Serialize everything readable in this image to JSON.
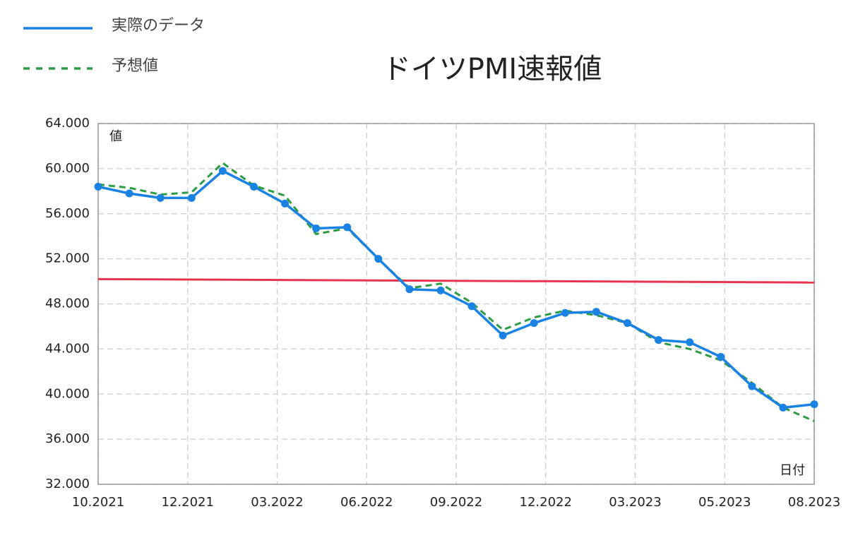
{
  "chart_data": {
    "type": "line",
    "title": "ドイツPMI速報値",
    "y_label": "値",
    "x_label": "日付",
    "series": [
      {
        "name": "実際のデータ",
        "color": "#1a82e2",
        "dash": false,
        "values": [
          58.4,
          57.8,
          57.4,
          57.4,
          59.8,
          58.4,
          56.9,
          54.7,
          54.8,
          52.0,
          49.3,
          49.2,
          47.8,
          45.2,
          46.3,
          47.2,
          47.3,
          46.3,
          44.8,
          44.6,
          43.3,
          40.7,
          38.8,
          39.1
        ]
      },
      {
        "name": "予想値",
        "color": "#2e9b45",
        "dash": true,
        "values": [
          58.6,
          58.3,
          57.7,
          57.9,
          60.5,
          58.5,
          57.6,
          54.2,
          54.7,
          52.0,
          49.4,
          49.8,
          48.1,
          45.7,
          46.8,
          47.4,
          47.0,
          46.3,
          44.6,
          44.0,
          43.0,
          41.0,
          38.8,
          37.6
        ]
      }
    ],
    "reference_line": {
      "color": "#e8344e",
      "values": [
        50.2,
        49.9
      ]
    },
    "xticks": [
      "10.2021",
      "12.2021",
      "03.2022",
      "06.2022",
      "09.2022",
      "12.2022",
      "03.2023",
      "05.2023",
      "08.2023"
    ],
    "ylim": [
      32,
      64
    ],
    "yticks": [
      {
        "value": 32,
        "label": "32.000"
      },
      {
        "value": 36,
        "label": "36.000"
      },
      {
        "value": 40,
        "label": "40.000"
      },
      {
        "value": 44,
        "label": "44.000"
      },
      {
        "value": 48,
        "label": "48.000"
      },
      {
        "value": 52,
        "label": "52.000"
      },
      {
        "value": 56,
        "label": "56.000"
      },
      {
        "value": 60,
        "label": "60.000"
      },
      {
        "value": 64,
        "label": "64.000"
      }
    ],
    "grid": true
  }
}
